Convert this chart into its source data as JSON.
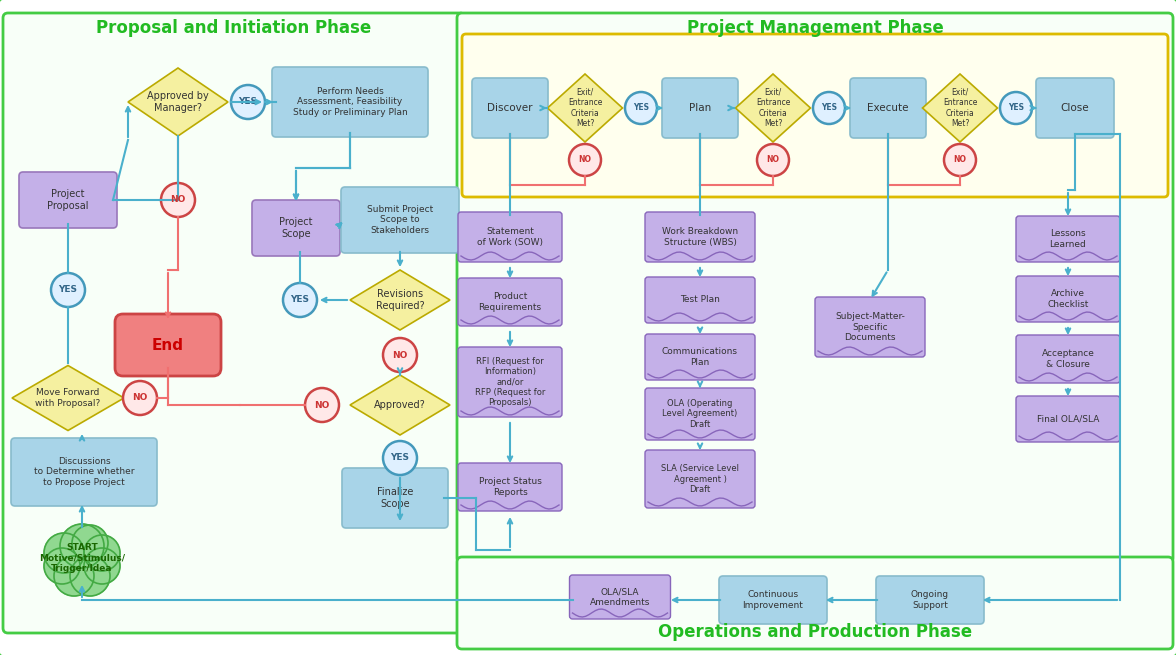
{
  "title_left": "Proposal and Initiation Phase",
  "title_right": "Project Management Phase",
  "title_bottom": "Operations and Production Phase",
  "color_blue_box": "#a8d4e8",
  "color_purple_box": "#c4b0e8",
  "color_yellow_diamond": "#f5f0a0",
  "color_pink_end": "#f08080",
  "color_green_cloud": "#90d890",
  "color_cyan_arrow": "#4ab0cc",
  "color_pink_arrow": "#f07070",
  "title_color": "#22bb22",
  "title_fontsize": 12,
  "outer_bg": "#ffffff",
  "section_bg": "#f5fff5",
  "yellow_box_bg": "#fffff0",
  "bottom_bg": "#f5fff5"
}
